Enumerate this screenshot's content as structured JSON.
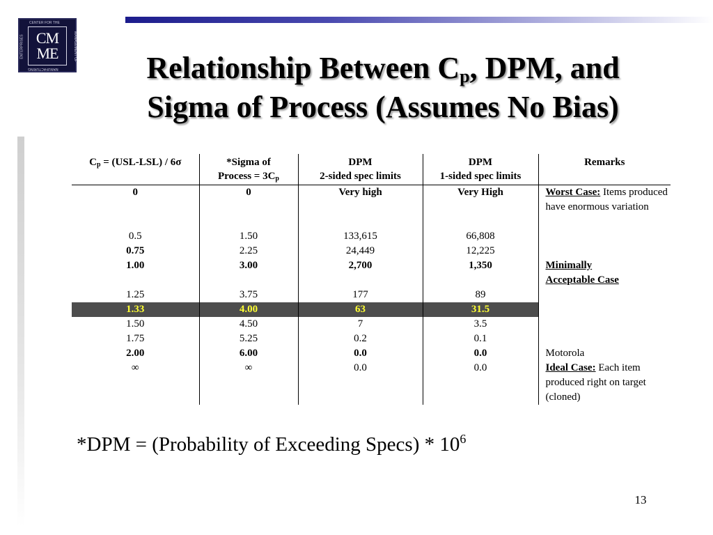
{
  "logo": {
    "line1": "CM",
    "line2": "ME",
    "ring_top": "CENTER FOR THE",
    "ring_right": "MANAGEMENT OF",
    "ring_bottom": "MANUFACTURING",
    "ring_left": "ENTERPRISES"
  },
  "title": {
    "part1": "Relationship Between C",
    "sub": "p",
    "part2": ", DPM, and",
    "line2": "Sigma of Process (Assumes No Bias)"
  },
  "table": {
    "headers": {
      "col1_a": "C",
      "col1_sub": "p",
      "col1_b": " = (USL-LSL) / 6σ",
      "col2_line1": "*Sigma of",
      "col2_line2a": "Process = 3C",
      "col2_sub": "p",
      "col3_line1": "DPM",
      "col3_line2": "2-sided spec limits",
      "col4_line1": "DPM",
      "col4_line2": "1-sided spec limits",
      "col5": "Remarks"
    },
    "rows": [
      {
        "cp": "0",
        "sigma": "0",
        "dpm2": "Very high",
        "dpm1": "Very High",
        "remark_bold": "Worst Case:",
        "remark": " Items produced have enormous variation"
      },
      {
        "cp": "",
        "sigma": "",
        "dpm2": "",
        "dpm1": "",
        "remark_bold": "",
        "remark": ""
      },
      {
        "cp": "",
        "sigma": "",
        "dpm2": "",
        "dpm1": "",
        "remark_bold": "",
        "remark": ""
      },
      {
        "cp": "0.5",
        "sigma": "1.50",
        "dpm2": "133,615",
        "dpm1": "66,808",
        "remark_bold": "",
        "remark": ""
      },
      {
        "cp": "0.75",
        "sigma": "2.25",
        "dpm2": "24,449",
        "dpm1": "12,225",
        "remark_bold": "",
        "remark": ""
      },
      {
        "cp": "1.00",
        "sigma": "3.00",
        "dpm2": "2,700",
        "dpm1": "1,350",
        "remark_bold": "Minimally",
        "remark": ""
      },
      {
        "cp": "",
        "sigma": "",
        "dpm2": "",
        "dpm1": "",
        "remark_bold": "Acceptable Case",
        "remark": ""
      },
      {
        "cp": "1.25",
        "sigma": "3.75",
        "dpm2": "177",
        "dpm1": "89",
        "remark_bold": "",
        "remark": ""
      },
      {
        "cp": "1.33",
        "sigma": "4.00",
        "dpm2": "63",
        "dpm1": "31.5",
        "remark_bold": "",
        "remark": ""
      },
      {
        "cp": "1.50",
        "sigma": "4.50",
        "dpm2": "7",
        "dpm1": "3.5",
        "remark_bold": "",
        "remark": ""
      },
      {
        "cp": "1.75",
        "sigma": "5.25",
        "dpm2": "0.2",
        "dpm1": "0.1",
        "remark_bold": "",
        "remark": ""
      },
      {
        "cp": "2.00",
        "sigma": "6.00",
        "dpm2": "0.0",
        "dpm1": "0.0",
        "remark_bold": "",
        "remark": "Motorola"
      },
      {
        "cp": "∞",
        "sigma": "∞",
        "dpm2": "0.0",
        "dpm1": "0.0",
        "remark_bold": "Ideal Case:",
        "remark": " Each item produced right on target (cloned)"
      }
    ]
  },
  "footnote": {
    "text": "*DPM = (Probability of Exceeding Specs) * 10",
    "exponent": "6"
  },
  "page_number": "13"
}
